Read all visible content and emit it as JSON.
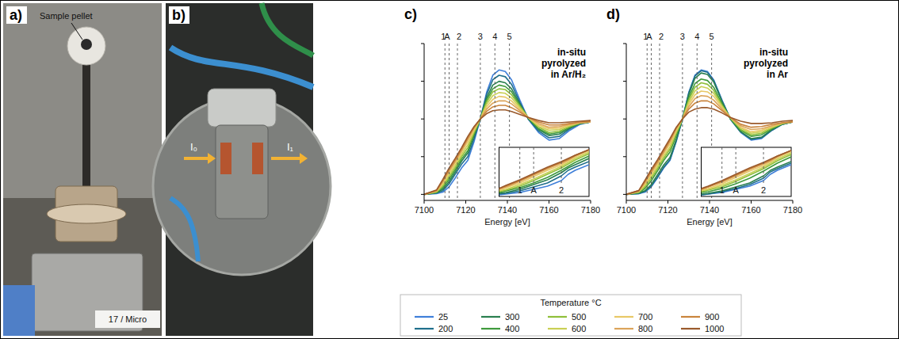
{
  "photos": [
    {
      "panel_label": "a)",
      "labels": [
        "Sample pellet",
        "17 / Micro"
      ]
    },
    {
      "panel_label": "b)",
      "labels": [
        "I₀",
        "I₁"
      ]
    }
  ],
  "figure_legend": {
    "title": "Temperature °C"
  },
  "chart_data": [
    {
      "type": "line",
      "panel_label": "c)",
      "annotation": [
        "in-situ",
        "pyrolyzed",
        "in Ar/H₂"
      ],
      "xlabel": "Energy [eV]",
      "x": [
        7100,
        7106,
        7109,
        7112,
        7115,
        7118,
        7121,
        7124,
        7127,
        7130,
        7133,
        7136,
        7139,
        7142,
        7146,
        7150,
        7155,
        7160,
        7165,
        7170,
        7175,
        7180
      ],
      "xlim": [
        7100,
        7180
      ],
      "xticks": [
        7100,
        7120,
        7140,
        7160,
        7180
      ],
      "ylim": [
        -0.08,
        2.0
      ],
      "yticks": [
        0,
        0.5,
        1,
        1.5,
        2
      ],
      "tick_labels": "x",
      "grid": false,
      "legend": "bottom",
      "markers": [
        {
          "value": 7110,
          "label": "1"
        },
        {
          "value": 7112,
          "label": "A"
        },
        {
          "value": 7116,
          "label": "2"
        },
        {
          "value": 7127,
          "label": "3"
        },
        {
          "value": 7134,
          "label": "4"
        },
        {
          "value": 7141,
          "label": "5"
        }
      ],
      "series": [
        {
          "name": "25",
          "color": "#3f7fd9",
          "values": [
            0.0,
            0.01,
            0.03,
            0.1,
            0.22,
            0.35,
            0.45,
            0.7,
            1.0,
            1.35,
            1.58,
            1.65,
            1.63,
            1.52,
            1.25,
            1.0,
            0.82,
            0.72,
            0.74,
            0.85,
            0.93,
            0.96
          ]
        },
        {
          "name": "200",
          "color": "#1f6f8b",
          "values": [
            0.0,
            0.02,
            0.05,
            0.14,
            0.27,
            0.4,
            0.5,
            0.74,
            1.0,
            1.32,
            1.52,
            1.58,
            1.56,
            1.46,
            1.22,
            1.0,
            0.84,
            0.75,
            0.77,
            0.87,
            0.94,
            0.96
          ]
        },
        {
          "name": "300",
          "color": "#2a7f4f",
          "values": [
            0.0,
            0.02,
            0.07,
            0.17,
            0.3,
            0.44,
            0.55,
            0.78,
            1.0,
            1.28,
            1.45,
            1.5,
            1.48,
            1.4,
            1.2,
            1.01,
            0.86,
            0.78,
            0.8,
            0.88,
            0.94,
            0.96
          ]
        },
        {
          "name": "400",
          "color": "#3f9a3c",
          "values": [
            0.0,
            0.03,
            0.09,
            0.2,
            0.33,
            0.47,
            0.58,
            0.8,
            1.0,
            1.25,
            1.4,
            1.45,
            1.43,
            1.36,
            1.18,
            1.01,
            0.87,
            0.8,
            0.82,
            0.89,
            0.94,
            0.96
          ]
        },
        {
          "name": "500",
          "color": "#8fbf3a",
          "values": [
            0.0,
            0.03,
            0.11,
            0.23,
            0.36,
            0.5,
            0.62,
            0.82,
            1.0,
            1.22,
            1.36,
            1.4,
            1.39,
            1.32,
            1.17,
            1.02,
            0.89,
            0.82,
            0.84,
            0.9,
            0.95,
            0.96
          ]
        },
        {
          "name": "600",
          "color": "#c9cf54",
          "values": [
            0.0,
            0.04,
            0.13,
            0.26,
            0.39,
            0.53,
            0.66,
            0.84,
            1.0,
            1.19,
            1.31,
            1.35,
            1.34,
            1.28,
            1.15,
            1.02,
            0.9,
            0.85,
            0.86,
            0.91,
            0.95,
            0.96
          ]
        },
        {
          "name": "700",
          "color": "#e8c866",
          "values": [
            0.0,
            0.04,
            0.15,
            0.29,
            0.42,
            0.56,
            0.7,
            0.86,
            1.0,
            1.16,
            1.26,
            1.3,
            1.29,
            1.24,
            1.13,
            1.02,
            0.92,
            0.87,
            0.88,
            0.92,
            0.95,
            0.96
          ]
        },
        {
          "name": "800",
          "color": "#dba45a",
          "values": [
            0.0,
            0.05,
            0.17,
            0.31,
            0.44,
            0.58,
            0.73,
            0.88,
            1.0,
            1.13,
            1.21,
            1.24,
            1.24,
            1.2,
            1.11,
            1.02,
            0.94,
            0.89,
            0.9,
            0.93,
            0.95,
            0.96
          ]
        },
        {
          "name": "900",
          "color": "#c9843c",
          "values": [
            0.0,
            0.05,
            0.18,
            0.33,
            0.46,
            0.6,
            0.75,
            0.89,
            1.0,
            1.1,
            1.16,
            1.18,
            1.18,
            1.15,
            1.09,
            1.02,
            0.96,
            0.92,
            0.92,
            0.94,
            0.96,
            0.97
          ]
        },
        {
          "name": "1000",
          "color": "#9a5a2c",
          "values": [
            0.0,
            0.06,
            0.2,
            0.35,
            0.48,
            0.62,
            0.77,
            0.9,
            1.0,
            1.07,
            1.11,
            1.12,
            1.12,
            1.1,
            1.06,
            1.02,
            0.98,
            0.95,
            0.95,
            0.96,
            0.97,
            0.98
          ]
        }
      ]
    },
    {
      "type": "line",
      "x": [
        7107,
        7108,
        7110,
        7112,
        7114,
        7116,
        7117,
        7118,
        7120
      ],
      "xlim": [
        7107,
        7120
      ],
      "ylim": [
        0,
        0.62
      ],
      "tick_labels": false,
      "markers": [
        {
          "value": 7110,
          "label": "1"
        },
        {
          "value": 7112,
          "label": "A"
        },
        {
          "value": 7116,
          "label": "2"
        }
      ],
      "series": [
        {
          "color": "#3f7fd9",
          "values": [
            0.02,
            0.03,
            0.05,
            0.09,
            0.13,
            0.2,
            0.28,
            0.33,
            0.4
          ]
        },
        {
          "color": "#1f6f8b",
          "values": [
            0.03,
            0.04,
            0.07,
            0.12,
            0.17,
            0.26,
            0.33,
            0.37,
            0.44
          ]
        },
        {
          "color": "#2a7f4f",
          "values": [
            0.04,
            0.05,
            0.09,
            0.15,
            0.21,
            0.3,
            0.36,
            0.4,
            0.48
          ]
        },
        {
          "color": "#3f9a3c",
          "values": [
            0.05,
            0.07,
            0.11,
            0.17,
            0.24,
            0.33,
            0.38,
            0.43,
            0.51
          ]
        },
        {
          "color": "#8fbf3a",
          "values": [
            0.06,
            0.08,
            0.13,
            0.2,
            0.28,
            0.36,
            0.41,
            0.46,
            0.54
          ]
        },
        {
          "color": "#c9cf54",
          "values": [
            0.07,
            0.09,
            0.15,
            0.22,
            0.3,
            0.38,
            0.43,
            0.48,
            0.56
          ]
        },
        {
          "color": "#e8c866",
          "values": [
            0.08,
            0.11,
            0.17,
            0.25,
            0.33,
            0.4,
            0.45,
            0.5,
            0.58
          ]
        },
        {
          "color": "#dba45a",
          "values": [
            0.09,
            0.12,
            0.19,
            0.27,
            0.35,
            0.42,
            0.46,
            0.51,
            0.59
          ]
        },
        {
          "color": "#c9843c",
          "values": [
            0.1,
            0.13,
            0.2,
            0.28,
            0.36,
            0.43,
            0.47,
            0.52,
            0.59
          ]
        },
        {
          "color": "#9a5a2c",
          "values": [
            0.1,
            0.14,
            0.21,
            0.29,
            0.37,
            0.44,
            0.48,
            0.52,
            0.59
          ]
        }
      ]
    },
    {
      "type": "line",
      "panel_label": "d)",
      "annotation": [
        "in-situ",
        "pyrolyzed",
        "in Ar"
      ],
      "xlabel": "Energy [eV]",
      "x": [
        7100,
        7106,
        7109,
        7112,
        7115,
        7118,
        7121,
        7124,
        7127,
        7130,
        7133,
        7136,
        7139,
        7142,
        7146,
        7150,
        7155,
        7160,
        7165,
        7170,
        7175,
        7180
      ],
      "xlim": [
        7100,
        7180
      ],
      "xticks": [
        7100,
        7120,
        7140,
        7160,
        7180
      ],
      "ylim": [
        -0.08,
        2.0
      ],
      "yticks": [
        0,
        0.5,
        1,
        1.5,
        2
      ],
      "tick_labels": "x",
      "grid": false,
      "markers": [
        {
          "value": 7110,
          "label": "1"
        },
        {
          "value": 7112,
          "label": "A"
        },
        {
          "value": 7116,
          "label": "2"
        },
        {
          "value": 7127,
          "label": "3"
        },
        {
          "value": 7134,
          "label": "4"
        },
        {
          "value": 7141,
          "label": "5"
        }
      ],
      "series": [
        {
          "color": "#3f7fd9",
          "values": [
            0.0,
            0.01,
            0.03,
            0.1,
            0.22,
            0.35,
            0.45,
            0.7,
            1.0,
            1.35,
            1.58,
            1.65,
            1.63,
            1.52,
            1.25,
            1.0,
            0.82,
            0.72,
            0.74,
            0.85,
            0.93,
            0.96
          ]
        },
        {
          "color": "#1f6f8b",
          "values": [
            0.0,
            0.01,
            0.04,
            0.11,
            0.23,
            0.36,
            0.46,
            0.71,
            1.0,
            1.34,
            1.57,
            1.64,
            1.62,
            1.51,
            1.24,
            1.0,
            0.83,
            0.73,
            0.75,
            0.85,
            0.93,
            0.96
          ]
        },
        {
          "color": "#2a7f4f",
          "values": [
            0.0,
            0.02,
            0.05,
            0.13,
            0.26,
            0.39,
            0.49,
            0.73,
            1.0,
            1.32,
            1.54,
            1.61,
            1.59,
            1.49,
            1.23,
            1.0,
            0.83,
            0.74,
            0.76,
            0.86,
            0.93,
            0.96
          ]
        },
        {
          "color": "#3f9a3c",
          "values": [
            0.0,
            0.02,
            0.08,
            0.18,
            0.31,
            0.45,
            0.56,
            0.78,
            1.0,
            1.28,
            1.47,
            1.53,
            1.51,
            1.42,
            1.2,
            1.01,
            0.85,
            0.77,
            0.79,
            0.87,
            0.94,
            0.96
          ]
        },
        {
          "color": "#8fbf3a",
          "values": [
            0.0,
            0.03,
            0.1,
            0.21,
            0.34,
            0.48,
            0.6,
            0.81,
            1.0,
            1.25,
            1.42,
            1.48,
            1.46,
            1.38,
            1.18,
            1.01,
            0.86,
            0.79,
            0.81,
            0.88,
            0.94,
            0.96
          ]
        },
        {
          "color": "#c9cf54",
          "values": [
            0.0,
            0.03,
            0.12,
            0.24,
            0.37,
            0.51,
            0.63,
            0.83,
            1.0,
            1.22,
            1.37,
            1.43,
            1.41,
            1.34,
            1.17,
            1.02,
            0.88,
            0.81,
            0.83,
            0.89,
            0.94,
            0.96
          ]
        },
        {
          "color": "#e8c866",
          "values": [
            0.0,
            0.04,
            0.14,
            0.27,
            0.4,
            0.54,
            0.67,
            0.85,
            1.0,
            1.19,
            1.32,
            1.37,
            1.36,
            1.3,
            1.15,
            1.02,
            0.89,
            0.83,
            0.85,
            0.9,
            0.95,
            0.96
          ]
        },
        {
          "color": "#dba45a",
          "values": [
            0.0,
            0.04,
            0.16,
            0.29,
            0.42,
            0.56,
            0.7,
            0.87,
            1.0,
            1.16,
            1.27,
            1.31,
            1.3,
            1.25,
            1.13,
            1.02,
            0.91,
            0.86,
            0.87,
            0.91,
            0.95,
            0.96
          ]
        },
        {
          "color": "#c9843c",
          "values": [
            0.0,
            0.05,
            0.17,
            0.31,
            0.44,
            0.58,
            0.72,
            0.88,
            1.0,
            1.13,
            1.21,
            1.24,
            1.24,
            1.2,
            1.11,
            1.02,
            0.93,
            0.89,
            0.9,
            0.93,
            0.95,
            0.96
          ]
        },
        {
          "color": "#9a5a2c",
          "values": [
            0.0,
            0.05,
            0.19,
            0.33,
            0.46,
            0.6,
            0.74,
            0.89,
            1.0,
            1.09,
            1.13,
            1.15,
            1.15,
            1.13,
            1.08,
            1.02,
            0.97,
            0.94,
            0.94,
            0.95,
            0.97,
            0.98
          ]
        }
      ]
    },
    {
      "type": "line",
      "x": [
        7107,
        7108,
        7110,
        7112,
        7114,
        7116,
        7117,
        7118,
        7120
      ],
      "xlim": [
        7107,
        7120
      ],
      "ylim": [
        0,
        0.62
      ],
      "tick_labels": false,
      "markers": [
        {
          "value": 7110,
          "label": "1"
        },
        {
          "value": 7112,
          "label": "A"
        },
        {
          "value": 7116,
          "label": "2"
        }
      ],
      "series": [
        {
          "color": "#3f7fd9",
          "values": [
            0.02,
            0.03,
            0.05,
            0.09,
            0.13,
            0.2,
            0.28,
            0.33,
            0.4
          ]
        },
        {
          "color": "#1f6f8b",
          "values": [
            0.02,
            0.03,
            0.06,
            0.1,
            0.15,
            0.23,
            0.31,
            0.35,
            0.42
          ]
        },
        {
          "color": "#2a7f4f",
          "values": [
            0.03,
            0.04,
            0.07,
            0.12,
            0.17,
            0.26,
            0.33,
            0.37,
            0.44
          ]
        },
        {
          "color": "#3f9a3c",
          "values": [
            0.05,
            0.06,
            0.1,
            0.16,
            0.23,
            0.32,
            0.37,
            0.42,
            0.5
          ]
        },
        {
          "color": "#8fbf3a",
          "values": [
            0.06,
            0.08,
            0.12,
            0.19,
            0.27,
            0.35,
            0.4,
            0.45,
            0.53
          ]
        },
        {
          "color": "#c9cf54",
          "values": [
            0.07,
            0.09,
            0.14,
            0.21,
            0.29,
            0.37,
            0.42,
            0.47,
            0.55
          ]
        },
        {
          "color": "#e8c866",
          "values": [
            0.08,
            0.1,
            0.16,
            0.24,
            0.32,
            0.39,
            0.44,
            0.49,
            0.57
          ]
        },
        {
          "color": "#dba45a",
          "values": [
            0.09,
            0.12,
            0.18,
            0.26,
            0.34,
            0.41,
            0.45,
            0.5,
            0.58
          ]
        },
        {
          "color": "#c9843c",
          "values": [
            0.09,
            0.12,
            0.19,
            0.27,
            0.35,
            0.42,
            0.46,
            0.51,
            0.58
          ]
        },
        {
          "color": "#9a5a2c",
          "values": [
            0.1,
            0.13,
            0.2,
            0.28,
            0.36,
            0.43,
            0.47,
            0.51,
            0.58
          ]
        }
      ]
    }
  ]
}
